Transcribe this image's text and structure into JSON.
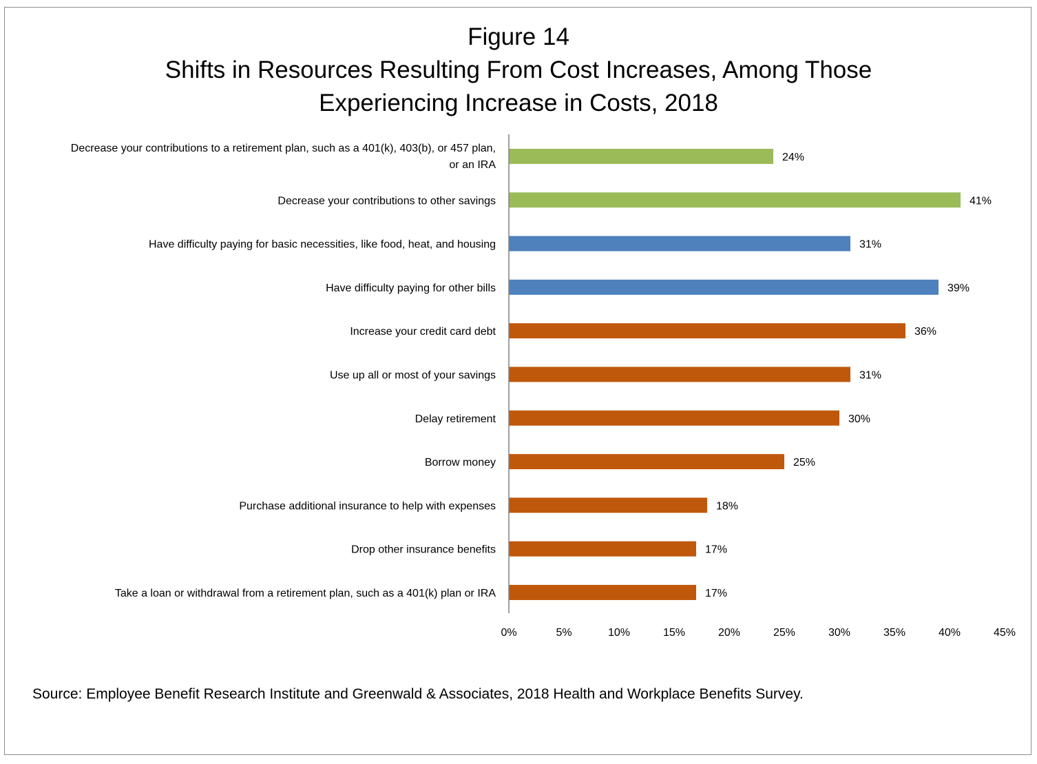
{
  "title": {
    "line1": "Figure 14",
    "line2": "Shifts in Resources Resulting From Cost Increases, Among Those",
    "line3": "Experiencing Increase in Costs, 2018"
  },
  "source": "Source: Employee Benefit Research Institute and Greenwald & Associates, 2018 Health and Workplace Benefits Survey.",
  "chart_data": {
    "type": "bar",
    "orientation": "horizontal",
    "title": "Shifts in Resources Resulting From Cost Increases, Among Those Experiencing Increase in Costs, 2018",
    "categories": [
      [
        "Decrease your contributions to a retirement plan, such  as a 401(k), 403(b), or 457 plan,",
        "or an IRA"
      ],
      [
        "Decrease your contributions to other savings"
      ],
      [
        "Have difficulty paying for basic necessities, like food, heat, and housing"
      ],
      [
        "Have difficulty paying for other bills"
      ],
      [
        "Increase your credit card debt"
      ],
      [
        "Use up all or most of your savings"
      ],
      [
        "Delay retirement"
      ],
      [
        "Borrow money"
      ],
      [
        "Purchase additional insurance to help with expenses"
      ],
      [
        "Drop other insurance benefits"
      ],
      [
        "Take a loan or withdrawal from a retirement plan, such as a 401(k) plan or IRA"
      ]
    ],
    "values": [
      24,
      41,
      31,
      39,
      36,
      31,
      30,
      25,
      18,
      17,
      17
    ],
    "value_labels": [
      "24%",
      "41%",
      "31%",
      "39%",
      "36%",
      "31%",
      "30%",
      "25%",
      "18%",
      "17%",
      "17%"
    ],
    "bar_colors": [
      "#9bbb59",
      "#9bbb59",
      "#4f81bd",
      "#4f81bd",
      "#c0580c",
      "#c0580c",
      "#c0580c",
      "#c0580c",
      "#c0580c",
      "#c0580c",
      "#c0580c"
    ],
    "xlim": [
      0,
      45
    ],
    "xticks": [
      0,
      5,
      10,
      15,
      20,
      25,
      30,
      35,
      40,
      45
    ],
    "xtick_labels": [
      "0%",
      "5%",
      "10%",
      "15%",
      "20%",
      "25%",
      "30%",
      "35%",
      "40%",
      "45%"
    ],
    "grid": false,
    "legend": false
  }
}
